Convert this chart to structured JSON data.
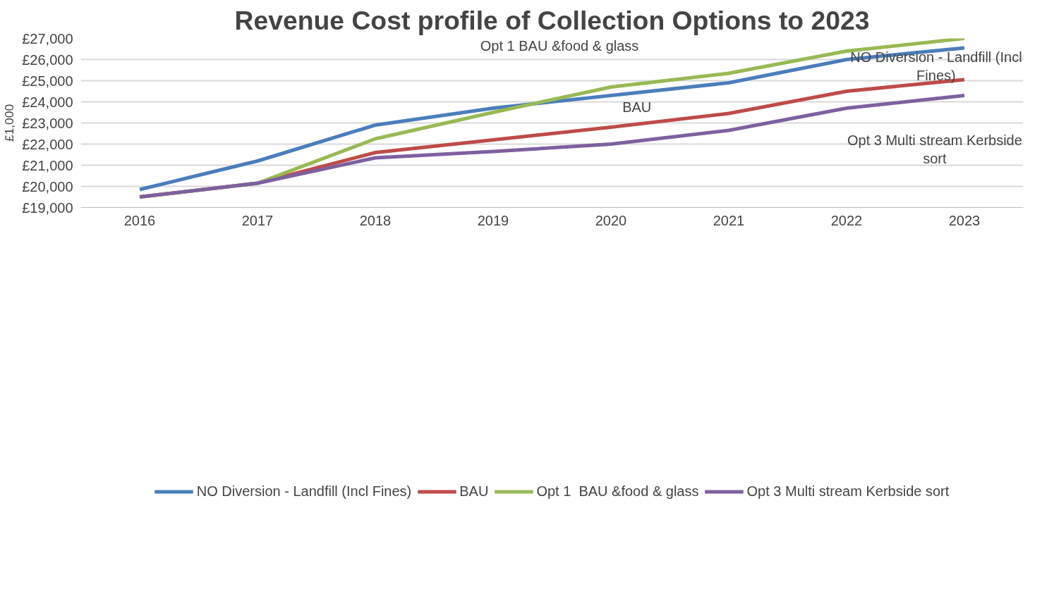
{
  "chart_data": {
    "type": "line",
    "title": "Revenue Cost profile of Collection Options to 2023",
    "ylabel": "£1,000",
    "categories": [
      "2016",
      "2017",
      "2018",
      "2019",
      "2020",
      "2021",
      "2022",
      "2023"
    ],
    "series": [
      {
        "name": "NO Diversion - Landfill (Incl Fines)",
        "color": "#4a7ebb",
        "values": [
          19850,
          21200,
          22900,
          23700,
          24300,
          24900,
          26000,
          26550
        ]
      },
      {
        "name": "BAU",
        "color": "#be4b48",
        "values": [
          19500,
          20150,
          21600,
          22200,
          22800,
          23450,
          24500,
          25050
        ]
      },
      {
        "name": "Opt 1  BAU &food & glass",
        "color": "#98b954",
        "values": [
          19500,
          20150,
          22250,
          23500,
          24700,
          25350,
          26400,
          27000
        ]
      },
      {
        "name": "Opt 3 Multi stream Kerbside sort",
        "color": "#7d60a0",
        "values": [
          19500,
          20150,
          21350,
          21650,
          22000,
          22650,
          23700,
          24300
        ]
      }
    ],
    "ylim": [
      19000,
      27000
    ],
    "yticks": [
      {
        "value": 19000,
        "label": "£19,000"
      },
      {
        "value": 20000,
        "label": "£20,000"
      },
      {
        "value": 21000,
        "label": "£21,000"
      },
      {
        "value": 22000,
        "label": "£22,000"
      },
      {
        "value": 23000,
        "label": "£23,000"
      },
      {
        "value": 24000,
        "label": "£24,000"
      },
      {
        "value": 25000,
        "label": "£25,000"
      },
      {
        "value": 26000,
        "label": "£26,000"
      },
      {
        "value": 27000,
        "label": "£27,000"
      }
    ],
    "grid": "y",
    "legend": "bottom",
    "marker": "none",
    "line_style": "solid",
    "annotations": [
      "Opt 1  BAU &food & glass",
      "NO Diversion - Landfill (Incl Fines)",
      "BAU",
      "Opt 3 Multi stream Kerbside sort"
    ]
  }
}
